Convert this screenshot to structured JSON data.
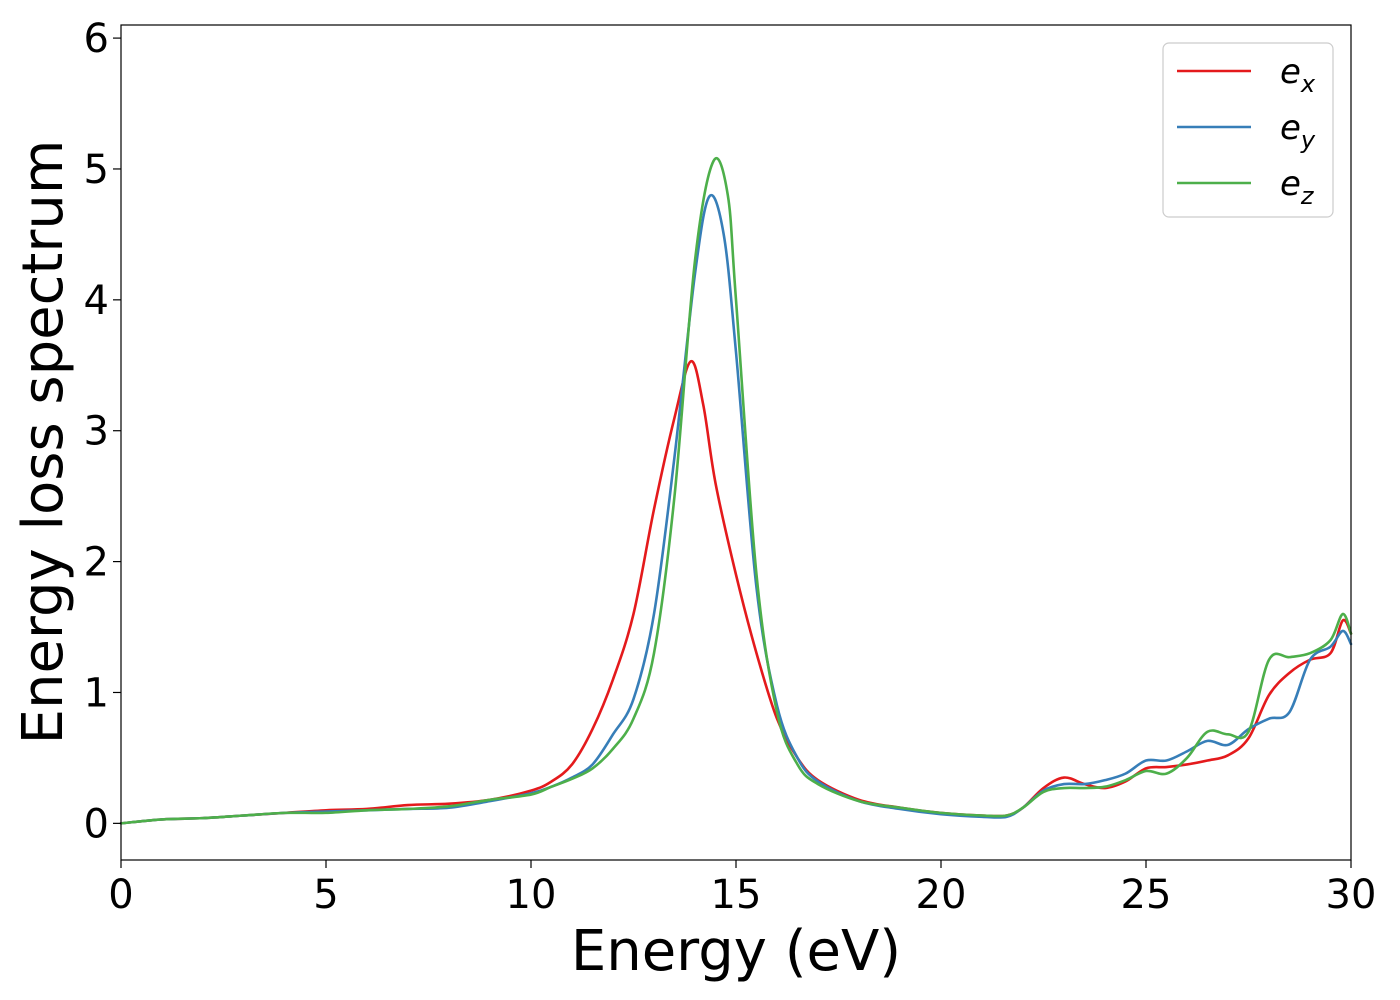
{
  "chart_data": {
    "type": "line",
    "xlabel": "Energy (eV)",
    "ylabel": "Energy loss spectrum",
    "xlim": [
      0,
      30
    ],
    "ylim": [
      -0.28,
      6.1
    ],
    "xticks": [
      0,
      5,
      10,
      15,
      20,
      25,
      30
    ],
    "yticks": [
      0,
      1,
      2,
      3,
      4,
      5,
      6
    ],
    "grid": false,
    "legend_position": "top-right",
    "series": [
      {
        "name": "e_x",
        "legend_base": "e",
        "legend_sub": "x",
        "color": "#e41a1c",
        "x": [
          0,
          1,
          2,
          3,
          4,
          5,
          6,
          7,
          8,
          9,
          10,
          10.5,
          11,
          11.5,
          12,
          12.5,
          13,
          13.5,
          13.9,
          14.2,
          14.5,
          15,
          15.5,
          16,
          16.5,
          17,
          18,
          19,
          20,
          21,
          21.6,
          22,
          22.5,
          23,
          23.5,
          24,
          24.5,
          25,
          25.5,
          26,
          26.5,
          27,
          27.5,
          28,
          28.5,
          29,
          29.5,
          29.8,
          30
        ],
        "y": [
          0,
          0.03,
          0.04,
          0.06,
          0.08,
          0.1,
          0.11,
          0.14,
          0.15,
          0.18,
          0.25,
          0.32,
          0.45,
          0.72,
          1.1,
          1.6,
          2.4,
          3.1,
          3.53,
          3.2,
          2.6,
          1.9,
          1.3,
          0.8,
          0.5,
          0.33,
          0.18,
          0.12,
          0.08,
          0.06,
          0.06,
          0.12,
          0.27,
          0.35,
          0.3,
          0.27,
          0.32,
          0.42,
          0.43,
          0.45,
          0.48,
          0.52,
          0.65,
          0.98,
          1.15,
          1.25,
          1.3,
          1.55,
          1.45
        ]
      },
      {
        "name": "e_y",
        "legend_base": "e",
        "legend_sub": "y",
        "color": "#377eb8",
        "x": [
          0,
          1,
          2,
          3,
          4,
          5,
          6,
          7,
          8,
          9,
          10,
          10.5,
          11,
          11.5,
          12,
          12.5,
          13,
          13.5,
          14,
          14.35,
          14.7,
          15,
          15.5,
          16,
          16.5,
          17,
          18,
          19,
          20,
          21,
          21.6,
          22,
          22.5,
          23,
          23.5,
          24,
          24.5,
          25,
          25.5,
          26,
          26.5,
          27,
          27.5,
          28,
          28.5,
          29,
          29.5,
          29.8,
          30
        ],
        "y": [
          0,
          0.03,
          0.04,
          0.06,
          0.08,
          0.09,
          0.1,
          0.11,
          0.12,
          0.17,
          0.23,
          0.28,
          0.35,
          0.45,
          0.68,
          0.95,
          1.6,
          2.8,
          4.2,
          4.79,
          4.5,
          3.6,
          1.8,
          0.9,
          0.5,
          0.32,
          0.17,
          0.11,
          0.07,
          0.05,
          0.05,
          0.12,
          0.25,
          0.3,
          0.3,
          0.33,
          0.38,
          0.48,
          0.48,
          0.55,
          0.63,
          0.6,
          0.72,
          0.8,
          0.85,
          1.25,
          1.35,
          1.47,
          1.37
        ]
      },
      {
        "name": "e_z",
        "legend_base": "e",
        "legend_sub": "z",
        "color": "#4daf4a",
        "x": [
          0,
          1,
          2,
          3,
          4,
          5,
          6,
          7,
          8,
          9,
          10,
          10.5,
          11,
          11.5,
          12,
          12.5,
          13,
          13.5,
          14,
          14.45,
          14.8,
          15,
          15.5,
          16,
          16.5,
          17,
          18,
          19,
          20,
          21,
          21.6,
          22,
          22.5,
          23,
          23.5,
          24,
          24.5,
          25,
          25.5,
          26,
          26.5,
          27,
          27.5,
          28,
          28.5,
          29,
          29.5,
          29.8,
          30
        ],
        "y": [
          0,
          0.03,
          0.04,
          0.06,
          0.08,
          0.08,
          0.1,
          0.11,
          0.13,
          0.18,
          0.22,
          0.28,
          0.34,
          0.42,
          0.57,
          0.8,
          1.3,
          2.5,
          4.3,
          5.06,
          4.8,
          4.0,
          1.9,
          0.85,
          0.45,
          0.3,
          0.17,
          0.12,
          0.08,
          0.06,
          0.06,
          0.12,
          0.24,
          0.27,
          0.27,
          0.28,
          0.33,
          0.4,
          0.38,
          0.5,
          0.7,
          0.68,
          0.7,
          1.25,
          1.27,
          1.3,
          1.4,
          1.6,
          1.45
        ]
      }
    ]
  }
}
